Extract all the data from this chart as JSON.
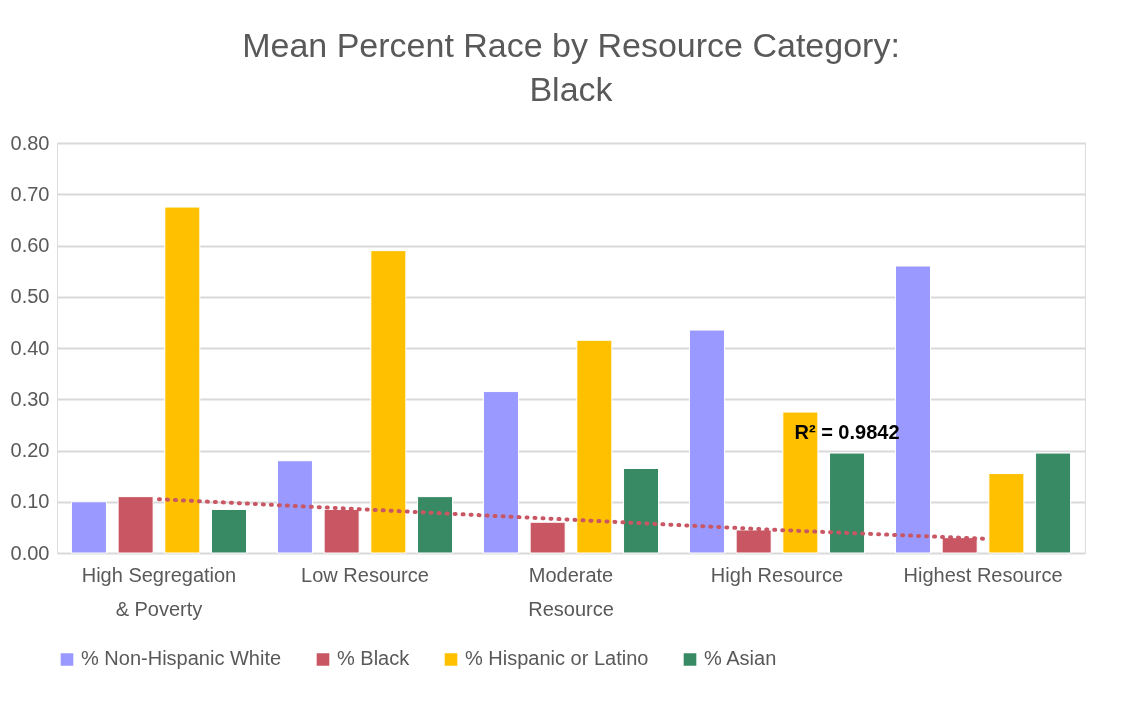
{
  "chart_data": {
    "type": "bar",
    "title": "Mean Percent Race by Resource Category: Black",
    "categories": [
      "High Segregation & Poverty",
      "Low Resource",
      "Moderate Resource",
      "High Resource",
      "Highest Resource"
    ],
    "series": [
      {
        "name": "% Non-Hispanic White",
        "color": "#9999ff",
        "values": [
          0.1,
          0.18,
          0.315,
          0.435,
          0.56
        ]
      },
      {
        "name": "% Black",
        "color": "#c85763",
        "values": [
          0.11,
          0.085,
          0.06,
          0.045,
          0.03
        ]
      },
      {
        "name": "% Hispanic or Latino",
        "color": "#ffc000",
        "values": [
          0.675,
          0.59,
          0.415,
          0.275,
          0.155
        ]
      },
      {
        "name": "% Asian",
        "color": "#388a64",
        "values": [
          0.085,
          0.11,
          0.165,
          0.195,
          0.195
        ]
      },
      {
        "type": "line",
        "color": "#c85763",
        "line_style": "dotted",
        "values": [
          0.105,
          0.085,
          0.065,
          0.045,
          0.028
        ]
      }
    ],
    "ylim": [
      0,
      0.8
    ],
    "yticks": [
      {
        "value": 0,
        "label": "0.00"
      },
      {
        "value": 0.1,
        "label": "0.10"
      },
      {
        "value": 0.2,
        "label": "0.20"
      },
      {
        "value": 0.3,
        "label": "0.30"
      },
      {
        "value": 0.4,
        "label": "0.40"
      },
      {
        "value": 0.5,
        "label": "0.50"
      },
      {
        "value": 0.6,
        "label": "0.60"
      },
      {
        "value": 0.7,
        "label": "0.70"
      },
      {
        "value": 0.8,
        "label": "0.80"
      }
    ],
    "annotations": [
      "R² = 0.9842"
    ],
    "grid": "y",
    "legend": "bottom"
  }
}
